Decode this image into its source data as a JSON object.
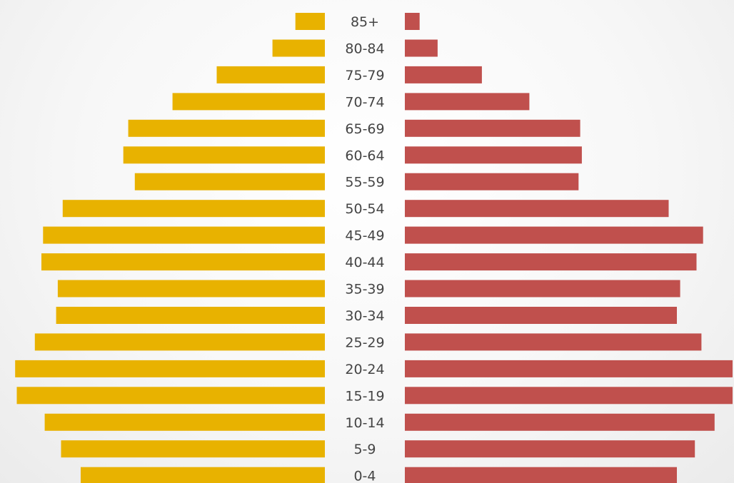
{
  "chart_data": {
    "type": "bar",
    "orientation": "population-pyramid",
    "title": "",
    "xlabel": "",
    "ylabel": "",
    "grid": false,
    "legend": "none",
    "categories": [
      "85+",
      "80-84",
      "75-79",
      "70-74",
      "65-69",
      "60-64",
      "55-59",
      "50-54",
      "45-49",
      "40-44",
      "35-39",
      "30-34",
      "25-29",
      "20-24",
      "15-19",
      "10-14",
      "5-9",
      "0-4"
    ],
    "xlim": [
      0,
      100
    ],
    "series": [
      {
        "side": "left",
        "color": "#E8B200",
        "values": [
          9,
          16,
          33,
          46.5,
          60,
          61.5,
          58,
          80,
          86,
          86.5,
          81.5,
          82,
          88.5,
          94.5,
          94,
          85.5,
          80.5,
          74.5
        ]
      },
      {
        "side": "right",
        "color": "#C0504D",
        "values": [
          4.5,
          10,
          23.5,
          38,
          53.5,
          54,
          53,
          80.5,
          91,
          89,
          84,
          83,
          90.5,
          100,
          100,
          94.5,
          88.5,
          83
        ]
      }
    ]
  }
}
